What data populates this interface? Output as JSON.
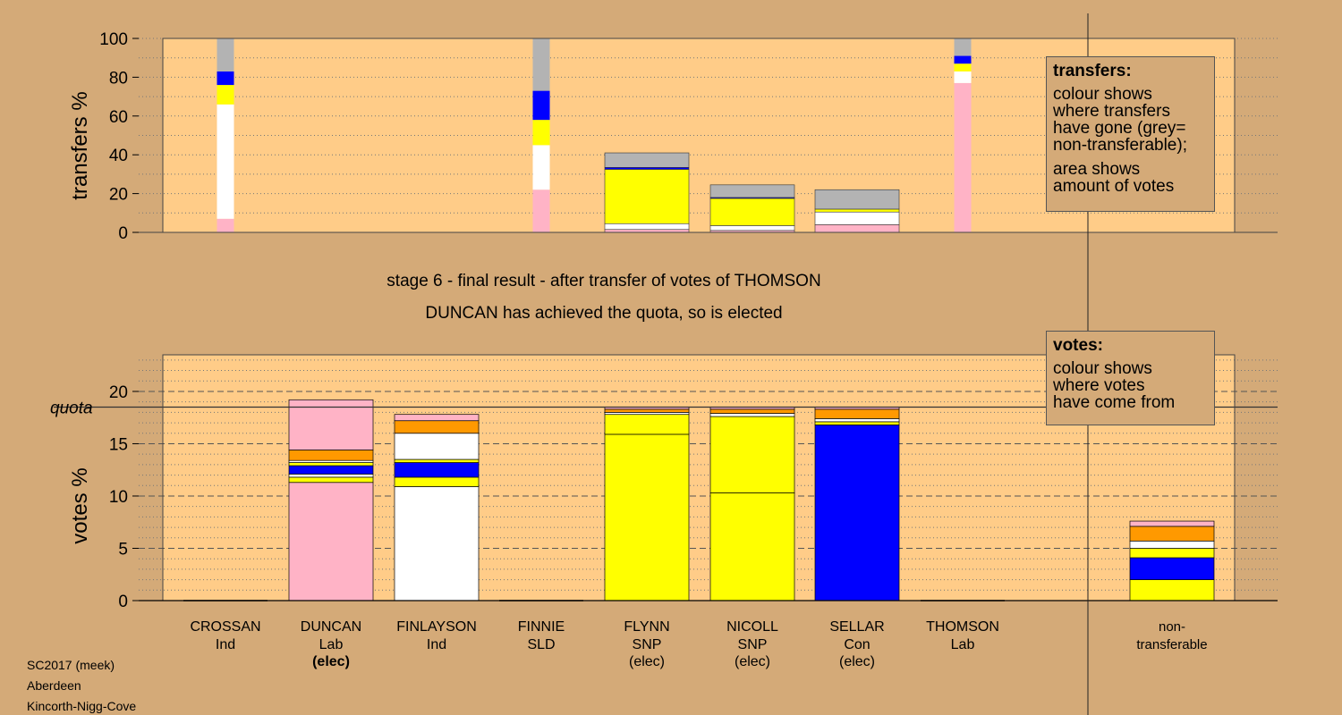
{
  "stage_title": "stage 6 - final result - after transfer of votes of THOMSON",
  "stage_subtitle": "DUNCAN has achieved the quota, so is elected",
  "legend_transfers": {
    "title": "transfers:",
    "lines1": [
      "colour shows",
      "where transfers",
      "have gone (grey=",
      "non-transferable);"
    ],
    "lines2": [
      "area shows",
      "amount of votes"
    ]
  },
  "legend_votes": {
    "title": "votes:",
    "lines": [
      "colour shows",
      "where votes",
      "have come from"
    ]
  },
  "footer": [
    "SC2017 (meek)",
    "Aberdeen",
    "Kincorth-Nigg-Cove"
  ],
  "colors": {
    "background": "#d4aa78",
    "plot_bg": "#ffcc88",
    "Lab": "#ffb3c6",
    "Ind": "#ffffff",
    "SNP": "#ffff00",
    "Con": "#0000ff",
    "SLD": "#ff9900",
    "nontransferable": "#b3b3b3"
  },
  "chart_data": [
    {
      "type": "bar",
      "ylabel": "transfers %",
      "ylim": [
        0,
        100
      ],
      "yticks": [
        0,
        20,
        40,
        60,
        80,
        100
      ],
      "grid": true,
      "bars": [
        {
          "column": 0,
          "width": "narrow",
          "segments": [
            {
              "party": "Lab",
              "value": 7
            },
            {
              "party": "Ind",
              "value": 59
            },
            {
              "party": "SNP",
              "value": 10
            },
            {
              "party": "Con",
              "value": 7
            },
            {
              "party": "nontransferable",
              "value": 17
            }
          ]
        },
        {
          "column": 3,
          "width": "narrow",
          "segments": [
            {
              "party": "Lab",
              "value": 22
            },
            {
              "party": "Ind",
              "value": 23
            },
            {
              "party": "SNP",
              "value": 13
            },
            {
              "party": "Con",
              "value": 15
            },
            {
              "party": "nontransferable",
              "value": 27
            }
          ]
        },
        {
          "column": 4,
          "width": "wide",
          "segments": [
            {
              "party": "Lab",
              "value": 1.5
            },
            {
              "party": "Ind",
              "value": 3
            },
            {
              "party": "SNP",
              "value": 28
            },
            {
              "party": "Con",
              "value": 1
            },
            {
              "party": "nontransferable",
              "value": 7.5
            }
          ]
        },
        {
          "column": 5,
          "width": "wide",
          "segments": [
            {
              "party": "Lab",
              "value": 1
            },
            {
              "party": "Ind",
              "value": 2.5
            },
            {
              "party": "SNP",
              "value": 14
            },
            {
              "party": "Con",
              "value": 0.5
            },
            {
              "party": "nontransferable",
              "value": 6.5
            }
          ]
        },
        {
          "column": 6,
          "width": "wide",
          "segments": [
            {
              "party": "Lab",
              "value": 4
            },
            {
              "party": "Ind",
              "value": 6.5
            },
            {
              "party": "SNP",
              "value": 1.5
            },
            {
              "party": "nontransferable",
              "value": 10
            }
          ]
        },
        {
          "column": 7,
          "width": "narrow",
          "segments": [
            {
              "party": "Lab",
              "value": 77
            },
            {
              "party": "Ind",
              "value": 6
            },
            {
              "party": "SNP",
              "value": 4
            },
            {
              "party": "Con",
              "value": 4
            },
            {
              "party": "nontransferable",
              "value": 9
            }
          ]
        }
      ]
    },
    {
      "type": "bar",
      "ylabel": "votes %",
      "ylim": [
        0,
        23.5
      ],
      "yticks": [
        0,
        5,
        10,
        15,
        20
      ],
      "quota": 18.5,
      "quota_label": "quota",
      "grid": true,
      "categories": [
        {
          "name": "CROSSAN",
          "party": "Ind",
          "status": ""
        },
        {
          "name": "DUNCAN",
          "party": "Lab",
          "status": "(elec)"
        },
        {
          "name": "FINLAYSON",
          "party": "Ind",
          "status": ""
        },
        {
          "name": "FINNIE",
          "party": "SLD",
          "status": ""
        },
        {
          "name": "FLYNN",
          "party": "SNP",
          "status": "(elec)"
        },
        {
          "name": "NICOLL",
          "party": "SNP",
          "status": "(elec)"
        },
        {
          "name": "SELLAR",
          "party": "Con",
          "status": "(elec)"
        },
        {
          "name": "THOMSON",
          "party": "Lab",
          "status": ""
        }
      ],
      "nontransferable_label": [
        "non-",
        "transferable"
      ],
      "bars": [
        {
          "candidate": "CROSSAN",
          "segments": []
        },
        {
          "candidate": "DUNCAN",
          "segments": [
            {
              "party": "Lab",
              "value": 11.3
            },
            {
              "party": "SNP",
              "value": 0.5
            },
            {
              "party": "Ind",
              "value": 0.3
            },
            {
              "party": "Con",
              "value": 0.8
            },
            {
              "party": "SNP",
              "value": 0.3
            },
            {
              "party": "Ind",
              "value": 0.2
            },
            {
              "party": "SLD",
              "value": 1.0
            },
            {
              "party": "Lab",
              "value": 4.8
            }
          ]
        },
        {
          "candidate": "FINLAYSON",
          "segments": [
            {
              "party": "Ind",
              "value": 10.9
            },
            {
              "party": "SNP",
              "value": 0.9
            },
            {
              "party": "Con",
              "value": 1.4
            },
            {
              "party": "SNP",
              "value": 0.3
            },
            {
              "party": "Ind",
              "value": 2.5
            },
            {
              "party": "SLD",
              "value": 1.2
            },
            {
              "party": "Lab",
              "value": 0.6
            }
          ]
        },
        {
          "candidate": "FINNIE",
          "segments": []
        },
        {
          "candidate": "FLYNN",
          "segments": [
            {
              "party": "SNP",
              "value": 15.9
            },
            {
              "party": "SNP",
              "value": 1.9
            },
            {
              "party": "Ind",
              "value": 0.2
            },
            {
              "party": "SLD",
              "value": 0.3
            },
            {
              "party": "Lab",
              "value": 0.2
            }
          ]
        },
        {
          "candidate": "NICOLL",
          "segments": [
            {
              "party": "SNP",
              "value": 10.3
            },
            {
              "party": "SNP",
              "value": 7.3
            },
            {
              "party": "Ind",
              "value": 0.3
            },
            {
              "party": "SLD",
              "value": 0.4
            },
            {
              "party": "Lab",
              "value": 0.2
            }
          ]
        },
        {
          "candidate": "SELLAR",
          "segments": [
            {
              "party": "Con",
              "value": 16.8
            },
            {
              "party": "SNP",
              "value": 0.3
            },
            {
              "party": "Ind",
              "value": 0.3
            },
            {
              "party": "SLD",
              "value": 0.9
            },
            {
              "party": "Lab",
              "value": 0.2
            }
          ]
        },
        {
          "candidate": "THOMSON",
          "segments": []
        },
        {
          "candidate": "non-transferable",
          "segments": [
            {
              "party": "SNP",
              "value": 2.0
            },
            {
              "party": "Con",
              "value": 2.1
            },
            {
              "party": "SNP",
              "value": 0.9
            },
            {
              "party": "Ind",
              "value": 0.7
            },
            {
              "party": "SLD",
              "value": 1.4
            },
            {
              "party": "Lab",
              "value": 0.5
            }
          ]
        }
      ]
    }
  ]
}
